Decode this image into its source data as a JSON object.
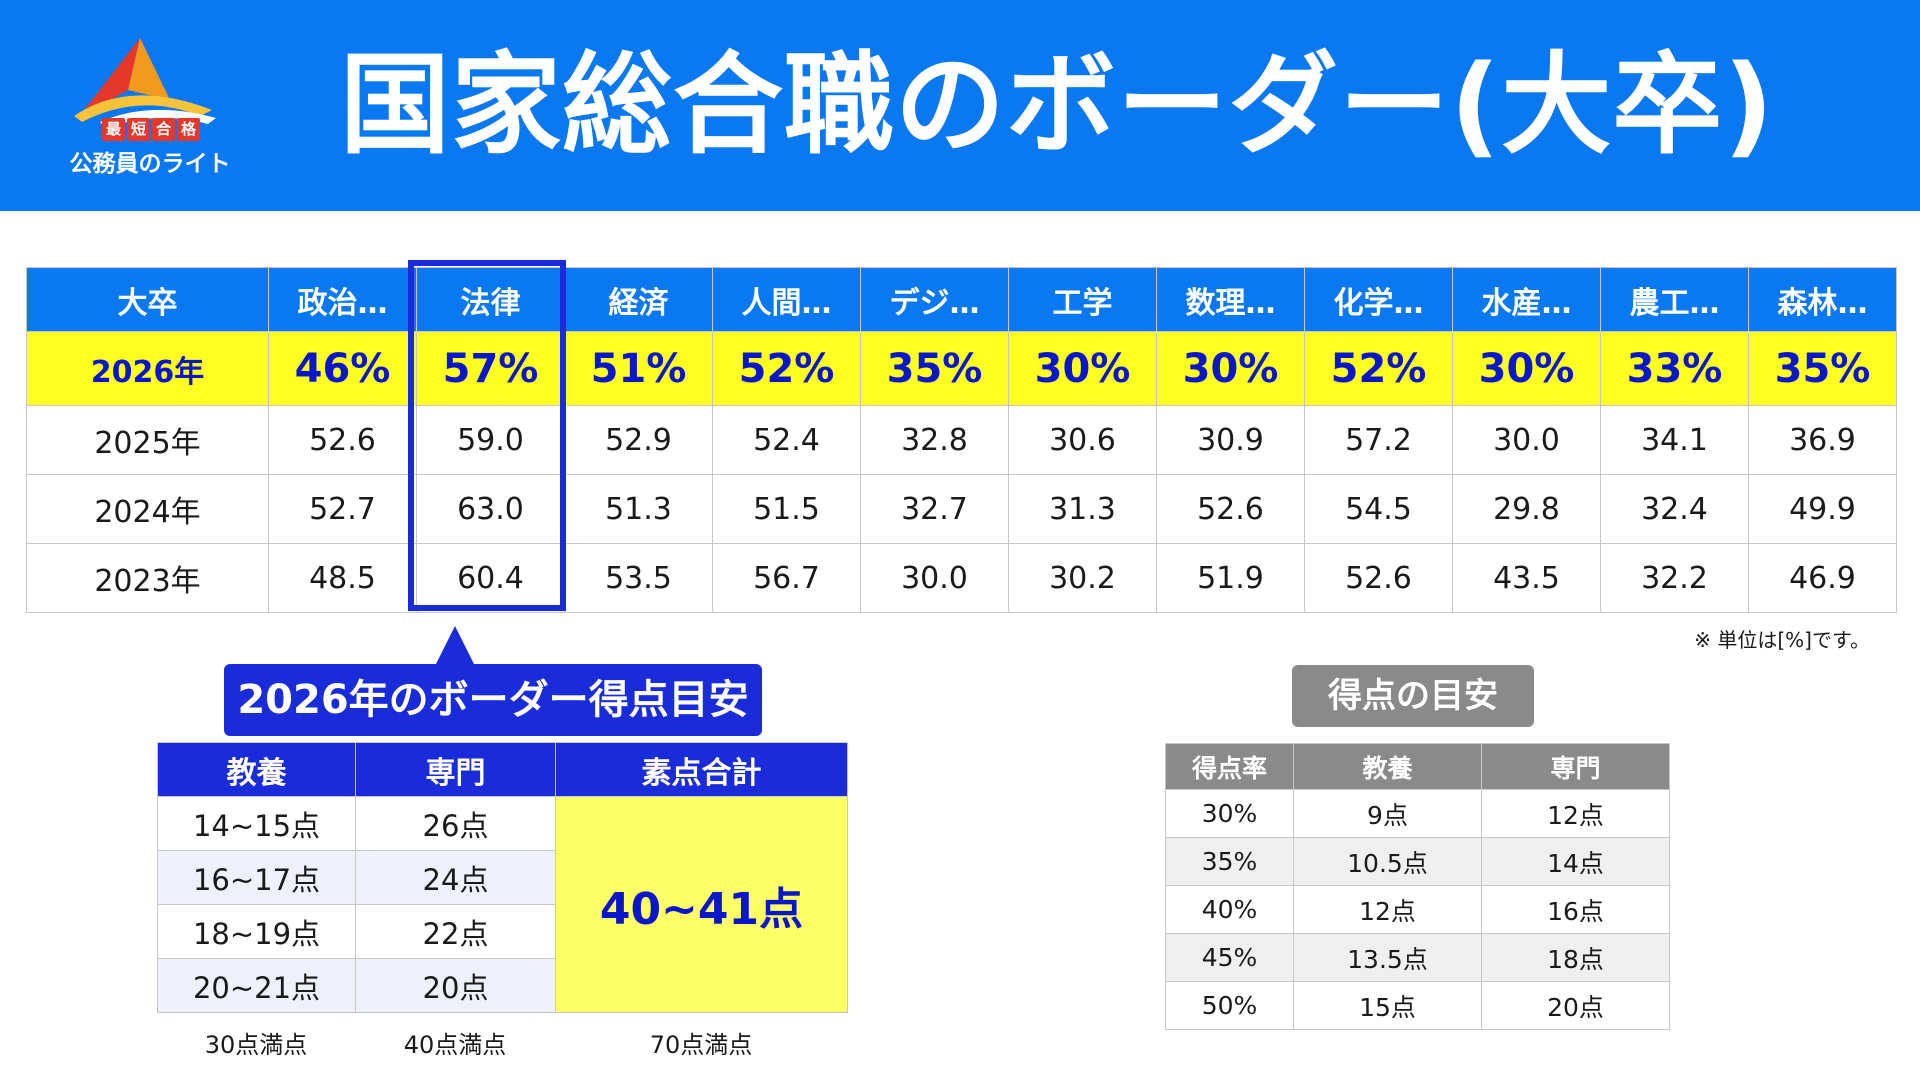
{
  "header": {
    "title": "国家総合職のボーダー(大卒)",
    "logo": {
      "tag_chars": [
        "最",
        "短",
        "合",
        "格"
      ],
      "name": "公務員のライト"
    }
  },
  "colors": {
    "header_blue": "#0a78f0",
    "highlight_yellow": "#ffff22",
    "accent_blue": "#1a2bd9",
    "guide_gray": "#8a8a8a"
  },
  "main_table": {
    "headers": [
      "大卒",
      "政治…",
      "法律",
      "経済",
      "人間…",
      "デジ…",
      "工学",
      "数理…",
      "化学…",
      "水産…",
      "農工…",
      "森林…"
    ],
    "highlight_row": {
      "year": "2026年",
      "values": [
        "46%",
        "57%",
        "51%",
        "52%",
        "35%",
        "30%",
        "30%",
        "52%",
        "30%",
        "33%",
        "35%"
      ]
    },
    "rows": [
      {
        "year": "2025年",
        "values": [
          "52.6",
          "59.0",
          "52.9",
          "52.4",
          "32.8",
          "30.6",
          "30.9",
          "57.2",
          "30.0",
          "34.1",
          "36.9"
        ]
      },
      {
        "year": "2024年",
        "values": [
          "52.7",
          "63.0",
          "51.3",
          "51.5",
          "32.7",
          "31.3",
          "52.6",
          "54.5",
          "29.8",
          "32.4",
          "49.9"
        ]
      },
      {
        "year": "2023年",
        "values": [
          "48.5",
          "60.4",
          "53.5",
          "56.7",
          "30.0",
          "30.2",
          "51.9",
          "52.6",
          "43.5",
          "32.2",
          "46.9"
        ]
      }
    ],
    "unit_note": "※ 単位は[%]です。"
  },
  "border_score": {
    "callout": "2026年のボーダー得点目安",
    "headers": [
      "教養",
      "専門",
      "素点合計"
    ],
    "rows": [
      [
        "14~15点",
        "26点"
      ],
      [
        "16~17点",
        "24点"
      ],
      [
        "18~19点",
        "22点"
      ],
      [
        "20~21点",
        "20点"
      ]
    ],
    "total": "40~41点",
    "full_scores": [
      "30点満点",
      "40点満点",
      "70点満点"
    ]
  },
  "score_guide": {
    "label": "得点の目安",
    "headers": [
      "得点率",
      "教養",
      "専門"
    ],
    "rows": [
      [
        "30%",
        "9点",
        "12点"
      ],
      [
        "35%",
        "10.5点",
        "14点"
      ],
      [
        "40%",
        "12点",
        "16点"
      ],
      [
        "45%",
        "13.5点",
        "18点"
      ],
      [
        "50%",
        "15点",
        "20点"
      ]
    ]
  }
}
